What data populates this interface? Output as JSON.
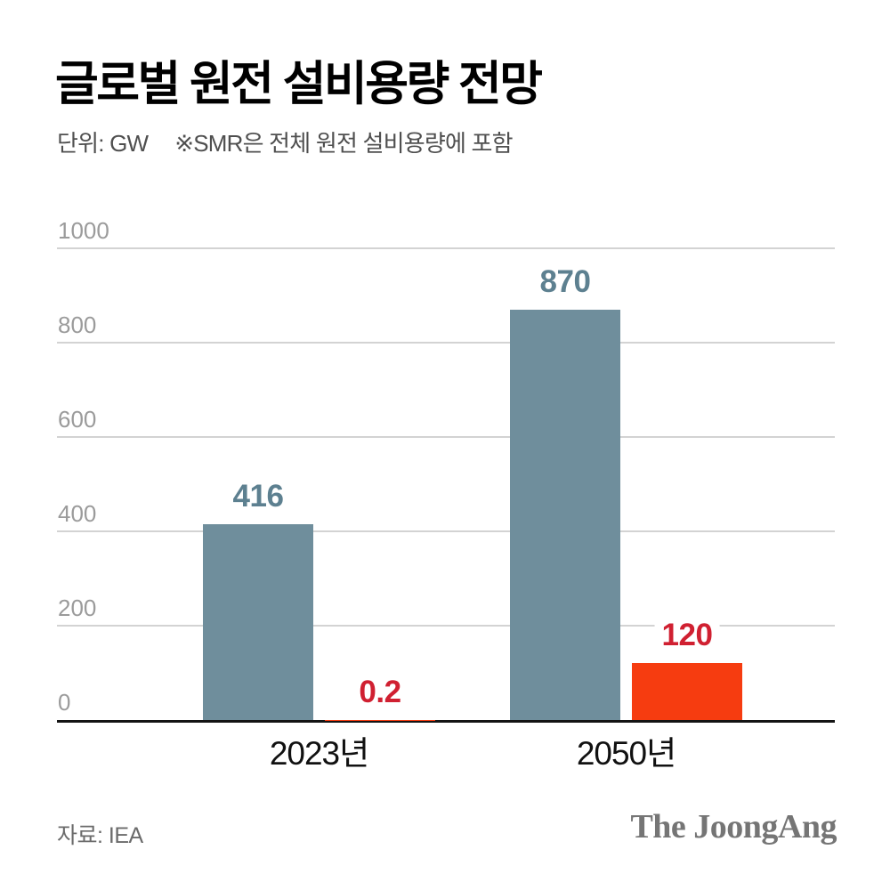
{
  "header": {
    "title": "글로벌 원전 설비용량 전망",
    "unit_label": "단위: GW",
    "note": "※SMR은 전체 원전 설비용량에 포함"
  },
  "chart_data": {
    "type": "bar",
    "title": "글로벌 원전 설비용량 전망",
    "unit": "GW",
    "categories": [
      "2023년",
      "2050년"
    ],
    "series": [
      {
        "key": "total-nuclear",
        "values": [
          416,
          870
        ],
        "labels": [
          "416",
          "870"
        ],
        "color": "#6f8e9c",
        "label_color": "#5d8090"
      },
      {
        "key": "smr",
        "values": [
          0.2,
          120
        ],
        "labels": [
          "0.2",
          "120"
        ],
        "color": "#f63c10",
        "label_color": "#d02031"
      }
    ],
    "ylim": [
      0,
      1000
    ],
    "yticks": [
      0,
      200,
      400,
      600,
      800,
      1000
    ],
    "grid": true,
    "legend_position": "none",
    "axis_color": "#141414",
    "grid_color": "#d3d3d3",
    "tick_label_color": "#9b9b9b"
  },
  "footer": {
    "source": "자료: IEA",
    "brand": "The JoongAng"
  }
}
